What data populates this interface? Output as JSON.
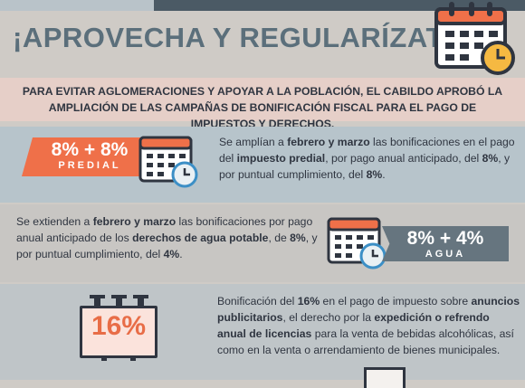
{
  "heading": "¡APROVECHA Y REGULARÍZATE!",
  "intro": "Para evitar aglomeraciones y apoyar a la población, el Cabildo aprobó la ampliación de las campañas de bonificación fiscal para el pago de impuestos y derechos.",
  "section_predial": {
    "tag_value": "8% + 8%",
    "tag_label": "PREDIAL",
    "text": [
      {
        "t": "Se amplían a ",
        "b": false
      },
      {
        "t": "febrero y marzo",
        "b": true
      },
      {
        "t": " las bonificaciones en el pago del ",
        "b": false
      },
      {
        "t": "impuesto predial",
        "b": true
      },
      {
        "t": ", por pago anual anticipado, del ",
        "b": false
      },
      {
        "t": "8%",
        "b": true
      },
      {
        "t": ", y por puntual cumplimiento, del ",
        "b": false
      },
      {
        "t": "8%",
        "b": true
      },
      {
        "t": ".",
        "b": false
      }
    ]
  },
  "section_agua": {
    "tag_value": "8% + 4%",
    "tag_label": "AGUA",
    "text": [
      {
        "t": "Se extienden a ",
        "b": false
      },
      {
        "t": "febrero y marzo",
        "b": true
      },
      {
        "t": " las bonificaciones por pago anual anticipado de los ",
        "b": false
      },
      {
        "t": "derechos de agua potable",
        "b": true
      },
      {
        "t": ", de ",
        "b": false
      },
      {
        "t": "8%",
        "b": true
      },
      {
        "t": ", y por puntual cumplimiento, del ",
        "b": false
      },
      {
        "t": "4%",
        "b": true
      },
      {
        "t": ".",
        "b": false
      }
    ]
  },
  "section_anuncios": {
    "badge": "16%",
    "text": [
      {
        "t": "Bonificación del ",
        "b": false
      },
      {
        "t": "16%",
        "b": true
      },
      {
        "t": " en el pago de impuesto sobre ",
        "b": false
      },
      {
        "t": "anuncios publicitarios",
        "b": true
      },
      {
        "t": ", el derecho por la ",
        "b": false
      },
      {
        "t": "expedición o refrendo anual de licencias",
        "b": true
      },
      {
        "t": " para la venta de bebidas alcohólicas, así como en la venta o arrendamiento de bienes municipales.",
        "b": false
      }
    ]
  },
  "colors": {
    "accent": "#ef7049",
    "slate": "#5b6f7b",
    "dark": "#2f3540",
    "tag_gray": "#66757f"
  },
  "icons": [
    "calendar-clock-icon",
    "billboard-icon"
  ]
}
